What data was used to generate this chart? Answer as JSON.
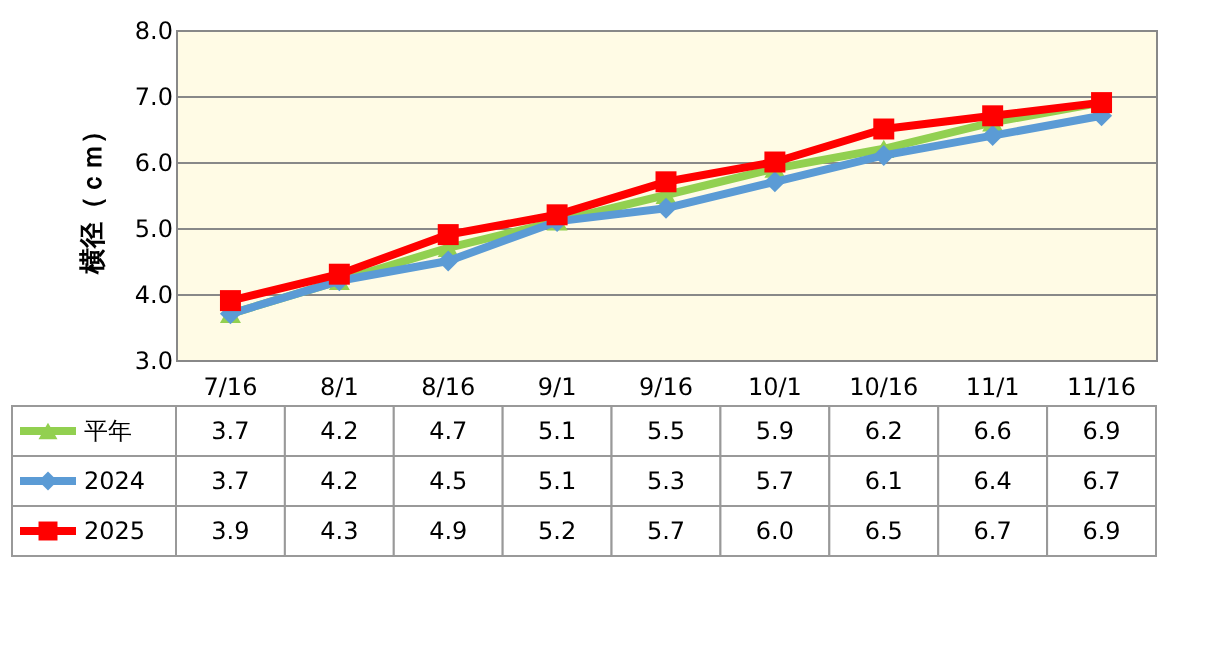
{
  "chart_data": {
    "type": "line",
    "ylabel": "横径（ｃｍ）",
    "categories": [
      "7/16",
      "8/1",
      "8/16",
      "9/1",
      "9/16",
      "10/1",
      "10/16",
      "11/1",
      "11/16"
    ],
    "series": [
      {
        "name": "平年",
        "color": "#92d050",
        "marker": "triangle",
        "values": [
          3.7,
          4.2,
          4.7,
          5.1,
          5.5,
          5.9,
          6.2,
          6.6,
          6.9
        ],
        "value_labels": [
          "3.7",
          "4.2",
          "4.7",
          "5.1",
          "5.5",
          "5.9",
          "6.2",
          "6.6",
          "6.9"
        ]
      },
      {
        "name": "2024",
        "color": "#5b9bd5",
        "marker": "diamond",
        "values": [
          3.7,
          4.2,
          4.5,
          5.1,
          5.3,
          5.7,
          6.1,
          6.4,
          6.7
        ],
        "value_labels": [
          "3.7",
          "4.2",
          "4.5",
          "5.1",
          "5.3",
          "5.7",
          "6.1",
          "6.4",
          "6.7"
        ]
      },
      {
        "name": "2025",
        "color": "#ff0000",
        "marker": "square",
        "values": [
          3.9,
          4.3,
          4.9,
          5.2,
          5.7,
          6.0,
          6.5,
          6.7,
          6.9
        ],
        "value_labels": [
          "3.9",
          "4.3",
          "4.9",
          "5.2",
          "5.7",
          "6.0",
          "6.5",
          "6.7",
          "6.9"
        ]
      }
    ],
    "ylim": [
      3.0,
      8.0
    ],
    "yticks": [
      {
        "value": 3,
        "label": "3.0"
      },
      {
        "value": 4,
        "label": "4.0"
      },
      {
        "value": 5,
        "label": "5.0"
      },
      {
        "value": 6,
        "label": "6.0"
      },
      {
        "value": 7,
        "label": "7.0"
      },
      {
        "value": 8,
        "label": "8.0"
      }
    ],
    "grid": "y",
    "legend": "bottom left",
    "line_style": "solid"
  }
}
